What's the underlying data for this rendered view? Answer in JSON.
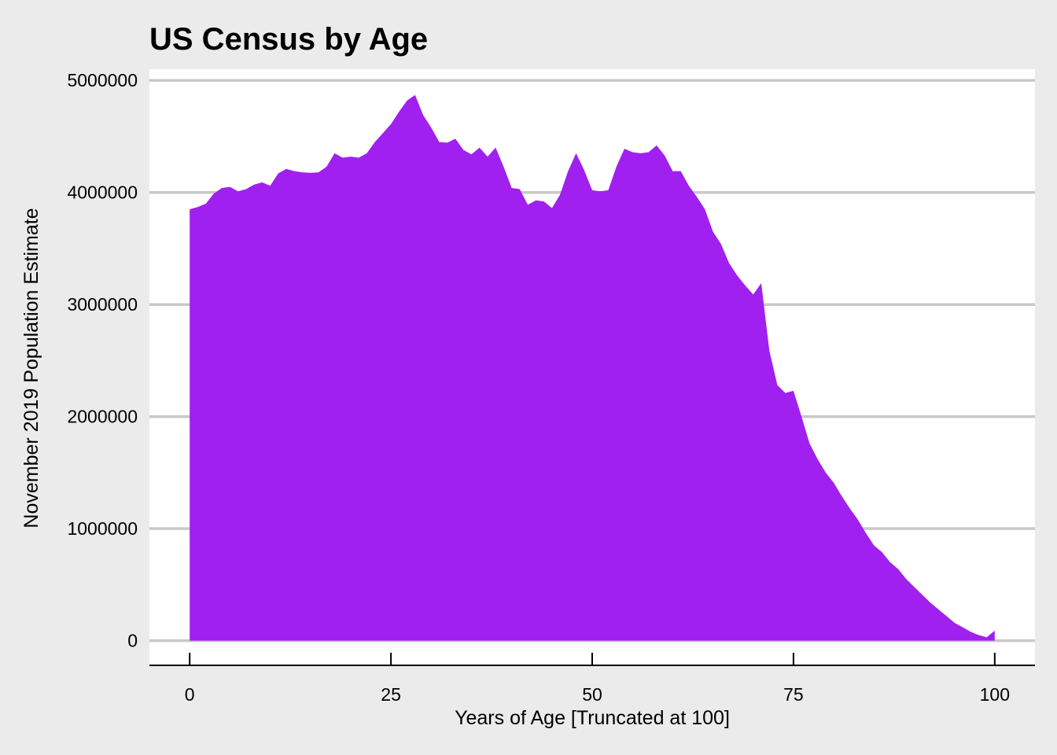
{
  "chart_data": {
    "type": "area",
    "title": "US Census by Age",
    "xlabel": "Years of Age [Truncated at 100]",
    "ylabel": "November 2019 Population Estimate",
    "xlim": [
      -5,
      105
    ],
    "ylim": [
      -220000,
      5100000
    ],
    "x_ticks": [
      0,
      25,
      50,
      75,
      100
    ],
    "x_tick_labels": [
      "0",
      "25",
      "50",
      "75",
      "100"
    ],
    "y_ticks": [
      0,
      1000000,
      2000000,
      3000000,
      4000000,
      5000000
    ],
    "y_tick_labels": [
      "0",
      "1000000",
      "2000000",
      "3000000",
      "4000000",
      "5000000"
    ],
    "grid": "horizontal",
    "fill_color": "#a020f0",
    "panel_color": "#ffffff",
    "background_color": "#ebebeb",
    "gridline_color": "#c8c8c8",
    "series": [
      {
        "x": [
          0,
          1,
          2,
          3,
          4,
          5,
          6,
          7,
          8,
          9,
          10,
          11,
          12,
          13,
          14,
          15,
          16,
          17,
          18,
          19,
          20,
          21,
          22,
          23,
          24,
          25,
          26,
          27,
          28,
          29,
          30,
          31,
          32,
          33,
          34,
          35,
          36,
          37,
          38,
          39,
          40,
          41,
          42,
          43,
          44,
          45,
          46,
          47,
          48,
          49,
          50,
          51,
          52,
          53,
          54,
          55,
          56,
          57,
          58,
          59,
          60,
          61,
          62,
          63,
          64,
          65,
          66,
          67,
          68,
          69,
          70,
          71,
          72,
          73,
          74,
          75,
          76,
          77,
          78,
          79,
          80,
          81,
          82,
          83,
          84,
          85,
          86,
          87,
          88,
          89,
          90,
          91,
          92,
          93,
          94,
          95,
          96,
          97,
          98,
          99,
          100
        ],
        "values": [
          3850000,
          3870000,
          3900000,
          3990000,
          4040000,
          4050000,
          4010000,
          4030000,
          4070000,
          4090000,
          4060000,
          4170000,
          4210000,
          4190000,
          4180000,
          4175000,
          4180000,
          4230000,
          4350000,
          4310000,
          4320000,
          4310000,
          4350000,
          4450000,
          4530000,
          4610000,
          4720000,
          4820000,
          4870000,
          4690000,
          4580000,
          4450000,
          4445000,
          4480000,
          4380000,
          4340000,
          4400000,
          4320000,
          4400000,
          4230000,
          4040000,
          4030000,
          3890000,
          3930000,
          3920000,
          3860000,
          3980000,
          4190000,
          4350000,
          4200000,
          4020000,
          4010000,
          4020000,
          4230000,
          4390000,
          4360000,
          4350000,
          4360000,
          4420000,
          4330000,
          4190000,
          4190000,
          4060000,
          3960000,
          3850000,
          3650000,
          3540000,
          3370000,
          3260000,
          3170000,
          3090000,
          3190000,
          2590000,
          2280000,
          2210000,
          2230000,
          2000000,
          1760000,
          1620000,
          1500000,
          1410000,
          1290000,
          1180000,
          1080000,
          960000,
          850000,
          790000,
          700000,
          640000,
          550000,
          480000,
          410000,
          340000,
          280000,
          220000,
          160000,
          120000,
          80000,
          50000,
          30000,
          90000
        ]
      }
    ]
  }
}
